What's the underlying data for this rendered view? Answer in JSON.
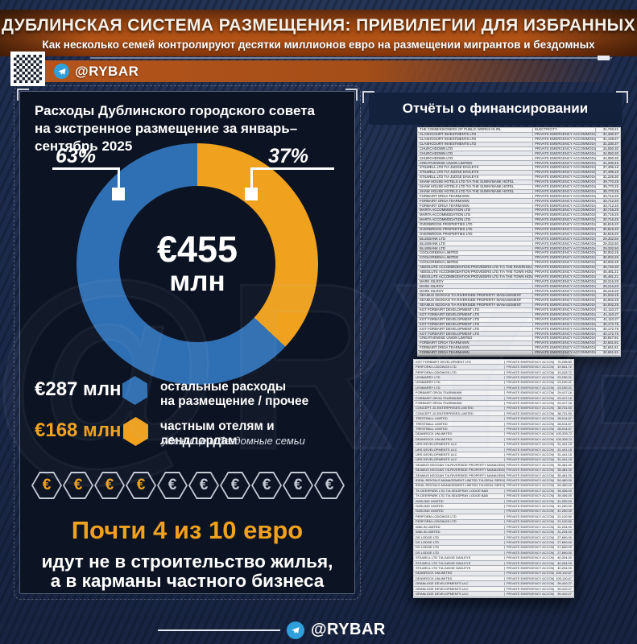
{
  "page": {
    "watermark": "@RYBAR"
  },
  "header": {
    "title": "ДУБЛИНСКАЯ СИСТЕМА РАЗМЕЩЕНИЯ: ПРИВИЛЕГИИ ДЛЯ ИЗБРАННЫХ",
    "subtitle": "Как несколько семей контролируют десятки миллионов евро на размещении мигрантов и бездомных",
    "channel": "@RYBAR"
  },
  "left_panel": {
    "title_line1": "Расходы Дублинского городского совета",
    "title_line2": "на экстренное размещение за январь–сентябрь 2025",
    "donut": {
      "center_value": "€455",
      "center_unit": "млн",
      "left_percent": "63%",
      "right_percent": "37%"
    },
    "legend": [
      {
        "amount": "€287 млн",
        "label_line1": "остальные расходы",
        "label_line2": "на размещение / прочее",
        "color": "#2f6fb3"
      },
      {
        "amount": "€168 млн",
        "label_line1": "частным отелям и лендлордам",
        "sublabel": "убежище и бездомные семьи",
        "color": "#f0a11d"
      }
    ],
    "coins": {
      "symbol": "€",
      "orange_count": 4,
      "gray_count": 6
    },
    "headline": "Почти 4 из 10 евро",
    "subheadline_line1": "идут не в строительство жилья,",
    "subheadline_line2": "а в карманы частного бизнеса"
  },
  "chart_data": {
    "type": "pie",
    "donut": true,
    "title": "Расходы Дублинского городского совета на экстренное размещение за январь–сентябрь 2025",
    "center_label": "€455 млн",
    "total_eur_mln": 455,
    "slices": [
      {
        "label": "остальные расходы на размещение / прочее",
        "percent": 63,
        "value_eur_mln": 287,
        "color": "#2f6fb3"
      },
      {
        "label": "частным отелям и лендлордам (убежище и бездомные семьи)",
        "percent": 37,
        "value_eur_mln": 168,
        "color": "#f0a11d"
      }
    ],
    "legend_position": "below"
  },
  "right_panel": {
    "title": "Отчёты о финансировании",
    "table1": {
      "category_default": "PRIVATE EMERGENCY ACCOMMODAT",
      "rows": [
        [
          "THE COMMISSIONERS OF PUBLIC WORKS IN IRL",
          "31,740.21",
          "ELECTRICITY"
        ],
        [
          "CLASHCOURT INVESTMENTS LTD",
          "31,330.37"
        ],
        [
          "CLASHCOURT INVESTMENTS LTD",
          "31,149.37"
        ],
        [
          "CLASHCOURT INVESTMENTS LTD",
          "31,330.37"
        ],
        [
          "CHURCHDOWN LTD",
          "34,050.30"
        ],
        [
          "CHURCHDOWN LTD",
          "34,050.30"
        ],
        [
          "CHURCHDOWN LTD",
          "34,050.30"
        ],
        [
          "CREATIVEWISE UNION LIMITED",
          "31,200.45"
        ],
        [
          "STILWELL LTD T/A JUDGE DAVLEYS",
          "37,495.16"
        ],
        [
          "STILWELL LTD T/A JUDGE DAVLEYS",
          "37,495.16"
        ],
        [
          "STILWELL LTD T/A JUDGE DAVLEYS",
          "31,226.30"
        ],
        [
          "SHAW HOUSE HOTELS LTD T/A THE SUNNYBANK HOTEL",
          "39,770.25"
        ],
        [
          "SHAW HOUSE HOTELS LTD T/A THE SUNNYBANK HOTEL",
          "39,770.25"
        ],
        [
          "SHAW HOUSE HOTELS LTD T/A THE SUNNYBANK HOTEL",
          "39,770.25"
        ],
        [
          "FORBAIRT ÓRGA TEARMAINN",
          "33,712.20"
        ],
        [
          "FORBAIRT ÓRGA TEARMAINN",
          "33,712.20"
        ],
        [
          "FORBAIRT ÓRGA TEARMAINN",
          "33,712.20"
        ],
        [
          "MARTA ACCOMMODATION LTD",
          "30,716.25"
        ],
        [
          "MARTA ACCOMMODATION LTD",
          "30,716.25"
        ],
        [
          "MARTA ACCOMMODATION LTD",
          "30,716.25"
        ],
        [
          "OVERBROOK PROPERTIES LTD",
          "36,815.20"
        ],
        [
          "OVERBROOK PROPERTIES LTD",
          "36,815.20"
        ],
        [
          "OVERBROOK PROPERTIES LTD",
          "36,815.20"
        ],
        [
          "BLUEBANK LTD",
          "29,332.50"
        ],
        [
          "BLUEBANK LTD",
          "29,332.50"
        ],
        [
          "BLUEBANK LTD",
          "29,332.50"
        ],
        [
          "COOLGREENA LIMITED",
          "30,002.25"
        ],
        [
          "COOLGREENA LIMITED",
          "30,002.25"
        ],
        [
          "COOLGREENA LIMITED",
          "30,002.25"
        ],
        [
          "ABSOLUTE ACCOMMODATION PROVIDERS LTD T/A THE RIVERHOUSE",
          "46,740.30"
        ],
        [
          "ABSOLUTE ACCOMMODATION PROVIDERS LTD T/A THE TOWN HOUSE",
          "45,481.21"
        ],
        [
          "ABSOLUTE ACCOMMODATION PROVIDERS LTD T/A THE TOWN HOUSE",
          "45,481.21"
        ],
        [
          "MARK GILROY",
          "28,216.20"
        ],
        [
          "MARK GILROY",
          "28,216.20"
        ],
        [
          "MARK GILROY",
          "28,216.20"
        ],
        [
          "SEAMUS KEOGAN T/A RIVERSIDE PROPERTY MANAGEMENT",
          "34,002.25"
        ],
        [
          "SEAMUS KEOGAN T/A RIVERSIDE PROPERTY MANAGEMENT",
          "34,002.25"
        ],
        [
          "SEAMUS KEOGAN T/A RIVERSIDE PROPERTY MANAGEMENT",
          "34,002.25"
        ],
        [
          "KGT FORBAIRT DEVELOPMENT LTD",
          "41,110.27"
        ],
        [
          "KGT FORBAIRT DEVELOPMENT LTD",
          "41,110.27"
        ],
        [
          "KGT FORBAIRT DEVELOPMENT LTD",
          "41,110.27"
        ],
        [
          "KGT FORBAIRT DEVELOPMENT LTD",
          "40,172.75"
        ],
        [
          "KGT FORBAIRT DEVELOPMENT LTD",
          "40,172.75"
        ],
        [
          "KGT FORBAIRT DEVELOPMENT LTD",
          "40,172.75"
        ],
        [
          "CREATIVEWISE UNION LIMITED",
          "30,847.91"
        ],
        [
          "FORBAIRT ÓRGA TEARMAINN",
          "32,651.81"
        ],
        [
          "FORBAIRT ÓRGA TEARMAINN",
          "32,651.81"
        ],
        [
          "FORBAIRT ÓRGA TEARMAINN",
          "32,651.81"
        ]
      ]
    },
    "table2": {
      "category_default": "PRIVATE EMERGENCY ACCOMMODATE",
      "rows": [
        [
          "KGT FORBAIRT DEVELOPMENT LTD",
          "75,298.80"
        ],
        [
          "PERFORM LODGINGS LTD",
          "19,541.72"
        ],
        [
          "PERFORM LODGINGS LTD",
          "19,243.72"
        ],
        [
          "LENMARRY LTD",
          "23,190.21"
        ],
        [
          "LENMARRY LTD",
          "23,190.21"
        ],
        [
          "LENMARRY LTD",
          "23,190.21"
        ],
        [
          "FORBAIRT ÓRGA TEARMAINN",
          "29,417.16"
        ],
        [
          "FORBAIRT ÓRGA TEARMAINN",
          "29,417.16"
        ],
        [
          "FORBAIRT ÓRGA TEARMAINN",
          "29,417.16"
        ],
        [
          "CONCEPT JG ENTERPRISES LIMITED",
          "38,731.50"
        ],
        [
          "CONCEPT JG ENTERPRISES LIMITED",
          "38,731.50"
        ],
        [
          "TRESTBALL LIMITED",
          "28,014.67"
        ],
        [
          "TRESTBALL LIMITED",
          "28,014.67"
        ],
        [
          "TRESTBALL LIMITED",
          "28,014.67"
        ],
        [
          "DEANROCK UNLIMITED",
          "100,335.72"
        ],
        [
          "DEANROCK UNLIMITED",
          "100,335.72"
        ],
        [
          "URS DEVELOPMENTS ULC",
          "31,441.15"
        ],
        [
          "URS DEVELOPMENTS ULC",
          "31,441.15"
        ],
        [
          "URS DEVELOPMENTS ULC",
          "31,441.15"
        ],
        [
          "URS DEVELOPMENTS ULC",
          "31,441.15"
        ],
        [
          "SEAMUS KEOGAN T/A RIVERSIDE PROPERTY MANAGEMENT",
          "35,481.00"
        ],
        [
          "SEAMUS KEOGAN T/A RIVERSIDE PROPERTY MANAGEMENT",
          "35,481.00"
        ],
        [
          "SEAMUS KEOGAN T/A RIVERSIDE PROPERTY MANAGEMENT",
          "35,481.00"
        ],
        [
          "IDEAL RENTALS MANAGEMENT LIMITED T/A IDEAL SERVICES",
          "54,460.00"
        ],
        [
          "IDEAL RENTALS MANAGEMENT LIMITED T/A IDEAL SERVICES",
          "54,460.00"
        ],
        [
          "TK DEERPARK LTD T/A SEASPRAY LODGE B&B",
          "39,406.00"
        ],
        [
          "TK DEERPARK LTD T/A SEASPRAY LODGE B&B",
          "39,406.00"
        ],
        [
          "GASLING LIMITED",
          "41,250.00"
        ],
        [
          "GASLING LIMITED",
          "41,250.00"
        ],
        [
          "GASLING LIMITED",
          "41,250.00"
        ],
        [
          "PERFORM LODGINGS LTD",
          "21,120.50"
        ],
        [
          "PERFORM LODGINGS LTD",
          "21,120.50"
        ],
        [
          "WAILIN LIMITED",
          "31,234.00"
        ],
        [
          "WAILIN LIMITED",
          "31,234.00"
        ],
        [
          "DS LODGE LTD",
          "27,690.00"
        ],
        [
          "DS LODGE LTD",
          "27,690.00"
        ],
        [
          "DS LODGE LTD",
          "27,690.00"
        ],
        [
          "DS LODGE LTD",
          "27,690.00"
        ],
        [
          "STILWELL LTD T/A JUDGE DAVLEYS",
          "40,204.00"
        ],
        [
          "STILWELL LTD T/A JUDGE DAVLEYS",
          "40,204.00"
        ],
        [
          "STILWELL LTD T/A JUDGE DAVLEYS",
          "40,204.00"
        ],
        [
          "DEANROCK UNLIMITED",
          "100,110.67"
        ],
        [
          "DEANROCK UNLIMITED",
          "100,110.67"
        ],
        [
          "GRANLOGE DEVELOPMENTS ULC",
          "39,410.27"
        ],
        [
          "GRANLOGE DEVELOPMENTS ULC",
          "39,410.27"
        ],
        [
          "GRANLOGE DEVELOPMENTS ULC",
          "39,410.27"
        ]
      ]
    }
  },
  "footer": {
    "channel": "@RYBAR"
  }
}
